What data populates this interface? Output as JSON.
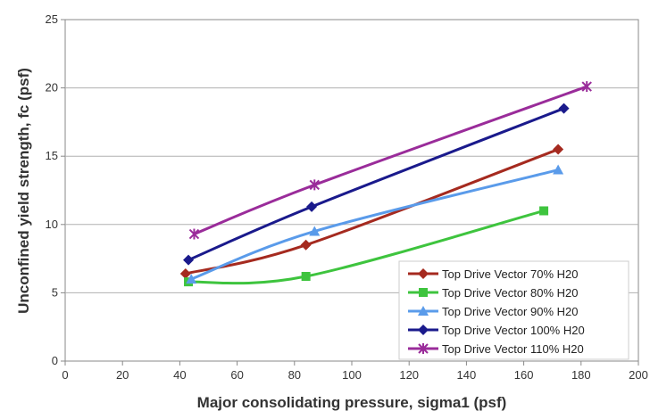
{
  "chart_data": {
    "type": "line",
    "title": "",
    "xlabel": "Major consolidating pressure, sigma1 (psf)",
    "ylabel": "Unconfined yield strength, fc (psf)",
    "xlim": [
      0,
      200
    ],
    "ylim": [
      0,
      25
    ],
    "xticks": [
      "0",
      "20",
      "40",
      "60",
      "80",
      "100",
      "120",
      "140",
      "160",
      "180",
      "200"
    ],
    "yticks": [
      "0",
      "5",
      "10",
      "15",
      "20",
      "25"
    ],
    "grid": "horizontal",
    "legend_position": "bottom-right",
    "series": [
      {
        "name": "Top Drive Vector 70% H20",
        "color": "#a52a1f",
        "marker": "diamond",
        "points": [
          [
            42,
            6.4
          ],
          [
            84,
            8.5
          ],
          [
            172,
            15.5
          ]
        ]
      },
      {
        "name": "Top Drive Vector 80% H20",
        "color": "#3ec43e",
        "marker": "square",
        "points": [
          [
            43,
            5.8
          ],
          [
            84,
            6.2
          ],
          [
            167,
            11.0
          ]
        ]
      },
      {
        "name": "Top Drive Vector 90% H20",
        "color": "#5a9bea",
        "marker": "triangle",
        "points": [
          [
            44,
            6.0
          ],
          [
            87,
            9.5
          ],
          [
            172,
            14.0
          ]
        ]
      },
      {
        "name": "Top Drive Vector 100% H20",
        "color": "#1a1a8c",
        "marker": "diamond",
        "points": [
          [
            43,
            7.4
          ],
          [
            86,
            11.3
          ],
          [
            174,
            18.5
          ]
        ]
      },
      {
        "name": "Top Drive Vector 110% H20",
        "color": "#9a2c9a",
        "marker": "star",
        "points": [
          [
            45,
            9.3
          ],
          [
            87,
            12.9
          ],
          [
            182,
            20.1
          ]
        ]
      }
    ]
  }
}
